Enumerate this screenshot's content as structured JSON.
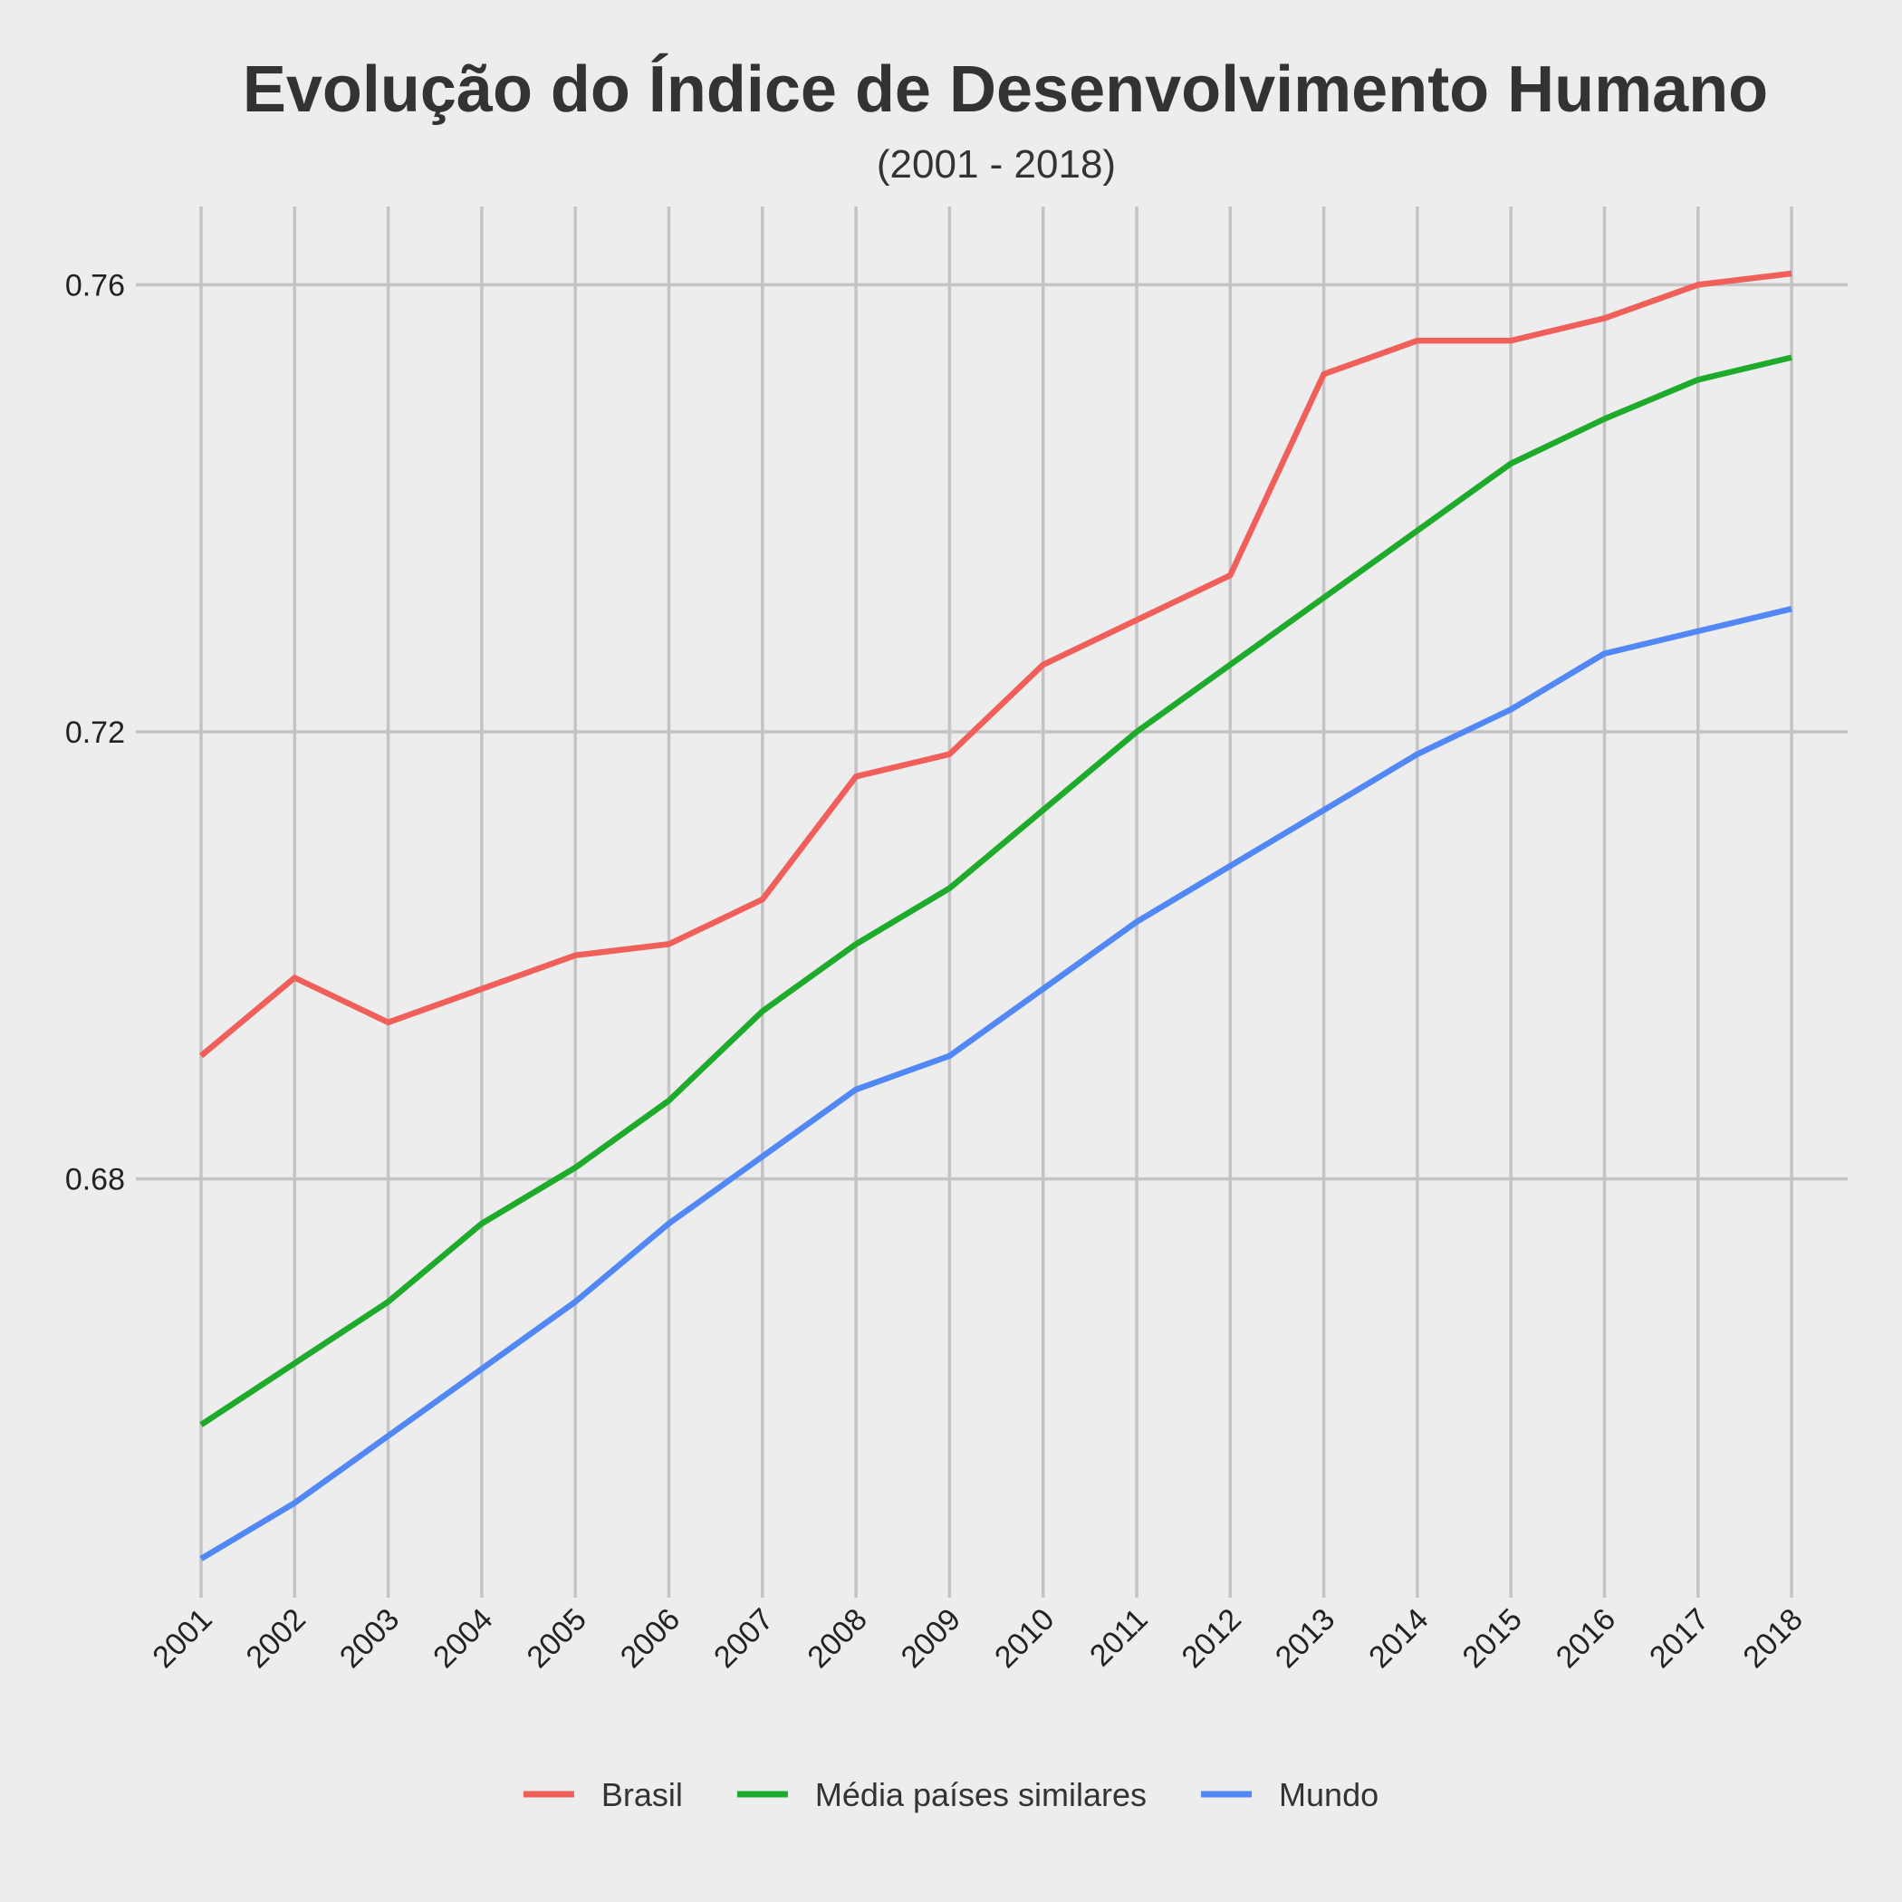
{
  "chart_data": {
    "type": "line",
    "title": "Evolução do Índice de Desenvolvimento Humano",
    "subtitle": "(2001 - 2018)",
    "xlabel": "",
    "ylabel": "",
    "x": [
      "2001",
      "2002",
      "2003",
      "2004",
      "2005",
      "2006",
      "2007",
      "2008",
      "2009",
      "2010",
      "2011",
      "2012",
      "2013",
      "2014",
      "2015",
      "2016",
      "2017",
      "2018"
    ],
    "yticks": [
      "0.68",
      "0.72",
      "0.76"
    ],
    "ytick_values": [
      0.68,
      0.72,
      0.76
    ],
    "ylim": [
      0.6435,
      0.767
    ],
    "grid": true,
    "legend_position": "bottom",
    "series": [
      {
        "name": "Brasil",
        "color": "#f05f5a",
        "values": [
          0.691,
          0.698,
          0.694,
          0.697,
          0.7,
          0.701,
          0.705,
          0.716,
          0.718,
          0.726,
          0.73,
          0.734,
          0.752,
          0.755,
          0.755,
          0.757,
          0.76,
          0.761
        ]
      },
      {
        "name": "Média países similares",
        "color": "#1eaa2b",
        "values": [
          0.658,
          0.6635,
          0.669,
          0.676,
          0.681,
          0.687,
          0.695,
          0.701,
          0.706,
          0.713,
          0.72,
          0.726,
          0.732,
          0.738,
          0.744,
          0.748,
          0.7515,
          0.7535
        ]
      },
      {
        "name": "Mundo",
        "color": "#5288f5",
        "values": [
          0.646,
          0.651,
          0.657,
          0.663,
          0.669,
          0.676,
          0.682,
          0.688,
          0.691,
          0.697,
          0.703,
          0.708,
          0.713,
          0.718,
          0.722,
          0.727,
          0.729,
          0.731
        ]
      }
    ]
  }
}
